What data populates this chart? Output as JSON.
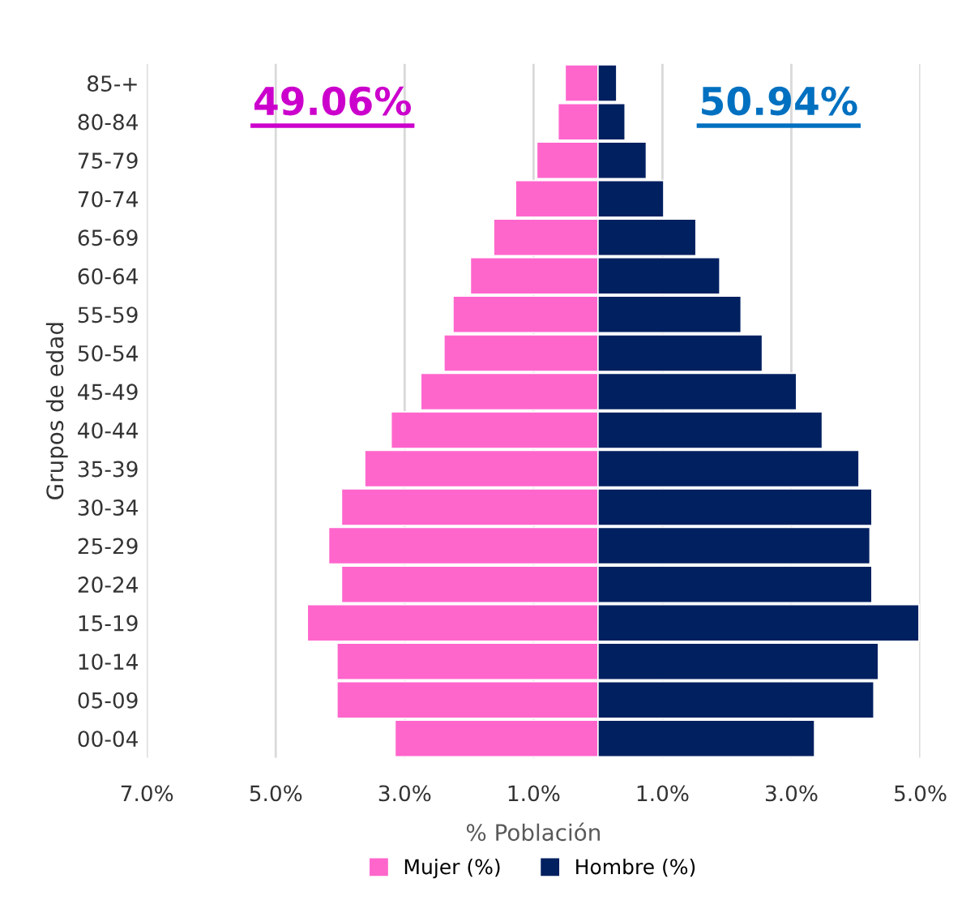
{
  "chart_data": {
    "type": "bar",
    "orientation": "horizontal",
    "xlabel": "% Población",
    "ylabel": "Grupos de edad",
    "categories": [
      "85-+",
      "80-84",
      "75-79",
      "70-74",
      "65-69",
      "60-64",
      "55-59",
      "50-54",
      "45-49",
      "40-44",
      "35-39",
      "30-34",
      "25-29",
      "20-24",
      "15-19",
      "10-14",
      "05-09",
      "00-04"
    ],
    "series": [
      {
        "name": "Mujer (%)",
        "color": "#ff66cc",
        "values": [
          -0.51,
          -0.62,
          -0.95,
          -1.28,
          -1.62,
          -1.98,
          -2.25,
          -2.39,
          -2.75,
          -3.21,
          -3.62,
          -3.98,
          -4.18,
          -3.98,
          -4.51,
          -4.05,
          -4.05,
          -3.15
        ]
      },
      {
        "name": "Hombre (%)",
        "color": "#002060",
        "values": [
          0.29,
          0.42,
          0.75,
          1.02,
          1.52,
          1.89,
          2.22,
          2.55,
          3.08,
          3.48,
          4.05,
          4.25,
          4.22,
          4.25,
          4.98,
          4.35,
          4.28,
          3.36
        ]
      }
    ],
    "xlim": [
      -7,
      5
    ],
    "xticks": [
      {
        "value": -7,
        "label": "7.0%"
      },
      {
        "value": -5,
        "label": "5.0%"
      },
      {
        "value": -3,
        "label": "3.0%"
      },
      {
        "value": -1,
        "label": "1.0%"
      },
      {
        "value": 1,
        "label": "1.0%"
      },
      {
        "value": 3,
        "label": "3.0%"
      },
      {
        "value": 5,
        "label": "5.0%"
      }
    ],
    "annotations": [
      "49.06%",
      "50.94%"
    ],
    "grid": "x",
    "legend": "bottom",
    "stacked": true
  }
}
